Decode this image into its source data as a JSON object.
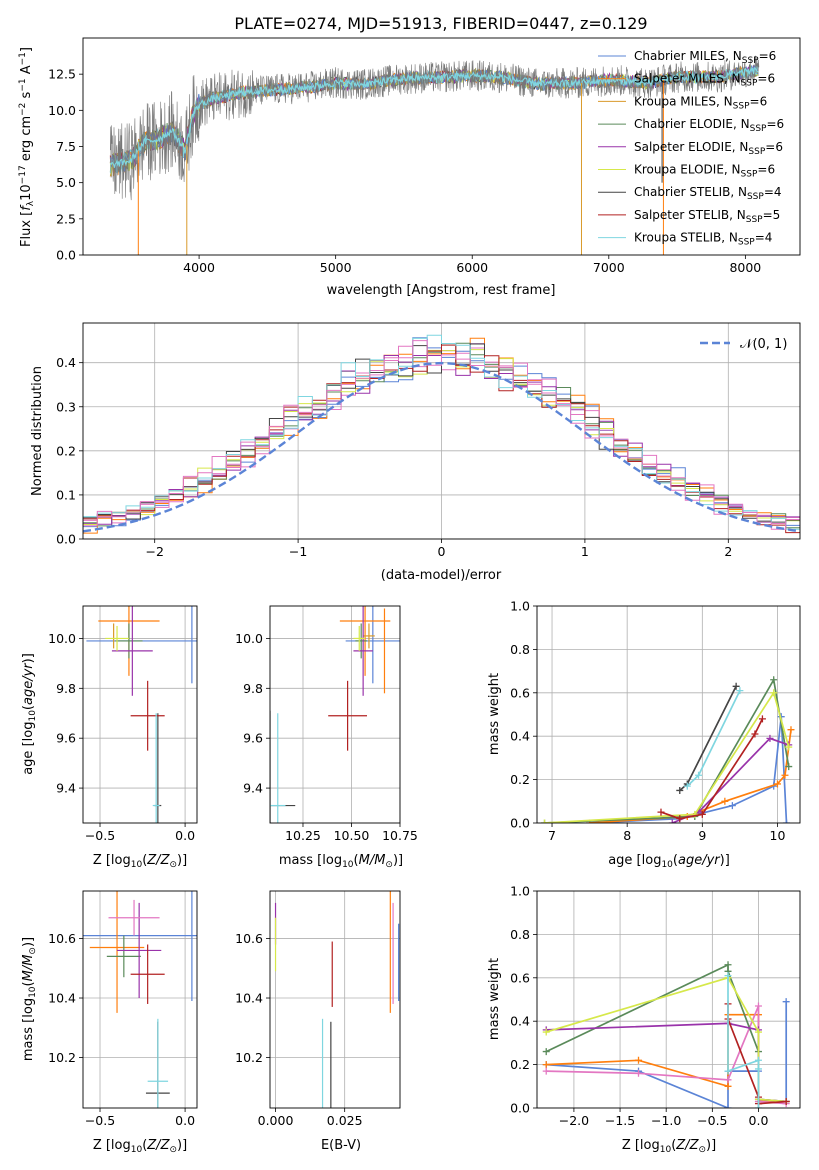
{
  "title": "PLATE=0274, MJD=51913, FIBERID=0447, z=0.129",
  "models": [
    {
      "name": "Chabrier MILES, N$_{SSP}$=6",
      "label_main": "Chabrier MILES, N",
      "label_sub": "SSP",
      "label_end": "=6",
      "color": "#5b84d6"
    },
    {
      "name": "Salpeter MILES, N$_{SSP}$=6",
      "label_main": "Salpeter MILES, N",
      "label_sub": "SSP",
      "label_end": "=6",
      "color": "#ff7f0e"
    },
    {
      "name": "Kroupa MILES, N$_{SSP}$=6",
      "label_main": "Kroupa MILES, N",
      "label_sub": "SSP",
      "label_end": "=6",
      "color": "#d99a2b"
    },
    {
      "name": "Chabrier ELODIE, N$_{SSP}$=6",
      "label_main": "Chabrier ELODIE, N",
      "label_sub": "SSP",
      "label_end": "=6",
      "color": "#5a8a5a"
    },
    {
      "name": "Salpeter ELODIE, N$_{SSP}$=6",
      "label_main": "Salpeter ELODIE, N",
      "label_sub": "SSP",
      "label_end": "=6",
      "color": "#9933aa"
    },
    {
      "name": "Kroupa ELODIE, N$_{SSP}$=6",
      "label_main": "Kroupa ELODIE, N",
      "label_sub": "SSP",
      "label_end": "=6",
      "color": "#d6e84a"
    },
    {
      "name": "Chabrier STELIB, N$_{SSP}$=4",
      "label_main": "Chabrier STELIB, N",
      "label_sub": "SSP",
      "label_end": "=4",
      "color": "#444444"
    },
    {
      "name": "Salpeter STELIB, N$_{SSP}$=5",
      "label_main": "Salpeter STELIB, N",
      "label_sub": "SSP",
      "label_end": "=5",
      "color": "#b22222"
    },
    {
      "name": "Kroupa STELIB, N$_{SSP}$=4",
      "label_main": "Kroupa STELIB, N",
      "label_sub": "SSP",
      "label_end": "=4",
      "color": "#7fd6e0"
    }
  ],
  "colors": {
    "grid": "#b0b0b0",
    "gauss": "#5b84d6",
    "data": "#777777",
    "pink": "#e377c2"
  },
  "chart_data": [
    {
      "id": "spectrum",
      "type": "line",
      "xlabel": "wavelength [Angstrom, rest frame]",
      "ylabel": "Flux [f$_\\lambda$10$^{-17}$ erg cm$^{-2}$ s$^{-1}$ A$^{-1}$]",
      "xlim": [
        3150,
        8400
      ],
      "ylim": [
        0,
        15
      ],
      "xticks": [
        4000,
        5000,
        6000,
        7000,
        8000
      ],
      "yticks": [
        0.0,
        2.5,
        5.0,
        7.5,
        10.0,
        12.5
      ],
      "xtick_labels": [
        "4000",
        "5000",
        "6000",
        "7000",
        "8000"
      ],
      "ytick_labels": [
        "0.0",
        "2.5",
        "5.0",
        "7.5",
        "10.0",
        "12.5"
      ],
      "continuum_x": [
        3350,
        3500,
        3600,
        3700,
        3800,
        3900,
        3950,
        4000,
        4100,
        4300,
        4500,
        4800,
        5000,
        5200,
        5500,
        5800,
        6000,
        6200,
        6500,
        6800,
        7000,
        7300,
        7500,
        7800,
        8100
      ],
      "continuum_y": [
        6.2,
        6.5,
        7.8,
        8.0,
        8.6,
        7.2,
        9.6,
        10.4,
        10.8,
        11.2,
        11.4,
        11.6,
        11.9,
        11.8,
        12.2,
        12.3,
        12.4,
        12.3,
        11.8,
        11.9,
        12.1,
        11.9,
        12.3,
        12.3,
        12.8
      ],
      "dips": [
        {
          "x": 3555,
          "y": 0.0,
          "series": 1
        },
        {
          "x": 3910,
          "y": 0.0,
          "series": 2
        },
        {
          "x": 6800,
          "y": 0.0,
          "series": 2
        },
        {
          "x": 7400,
          "y": 0.0,
          "series": 1
        },
        {
          "x": 7390,
          "y": 5.0,
          "series": 6
        }
      ],
      "legend": "top-right",
      "grid": false
    },
    {
      "id": "residuals",
      "type": "step",
      "xlabel": "(data-model)/error",
      "ylabel": "Normed distribution",
      "xlim": [
        -2.5,
        2.5
      ],
      "ylim": [
        0,
        0.49
      ],
      "xticks": [
        -2,
        -1,
        0,
        1,
        2
      ],
      "yticks": [
        0.0,
        0.1,
        0.2,
        0.3,
        0.4
      ],
      "xtick_labels": [
        "−2",
        "−1",
        "0",
        "1",
        "2"
      ],
      "ytick_labels": [
        "0.0",
        "0.1",
        "0.2",
        "0.3",
        "0.4"
      ],
      "bin_width": 0.1,
      "gauss_label": "$\\mathcal{N}(0,1)$",
      "gauss_label_text": "𝒩(0, 1)",
      "legend": "top-right",
      "grid": true
    },
    {
      "id": "age_vs_Z",
      "type": "errorbar",
      "xlabel": "Z [log$_{10}$(Z/Z$_\\odot$)]",
      "ylabel": "age  [log$_{10}$(age/yr)]",
      "xlim": [
        -0.6,
        0.07
      ],
      "ylim": [
        9.26,
        10.13
      ],
      "xticks": [
        -0.5,
        0.0
      ],
      "yticks": [
        9.4,
        9.6,
        9.8,
        10.0
      ],
      "xtick_labels": [
        "−0.5",
        "0.0"
      ],
      "ytick_labels": [
        "9.4",
        "9.6",
        "9.8",
        "10.0"
      ],
      "points": [
        {
          "s": 0,
          "x": -0.18,
          "xe": 0.4,
          "y": 9.99,
          "ye": 0.0
        },
        {
          "s": 0,
          "x": 0.04,
          "xe": 0.0,
          "y": 9.99,
          "ye": 0.17
        },
        {
          "s": 1,
          "x": -0.33,
          "xe": 0.18,
          "y": 10.07,
          "ye": 0.22
        },
        {
          "s": 2,
          "x": -0.42,
          "xe": 0.0,
          "y": 10.01,
          "ye": 0.05
        },
        {
          "s": 3,
          "x": -0.33,
          "xe": 0.08,
          "y": 9.99,
          "ye": 0.07
        },
        {
          "s": 4,
          "x": -0.31,
          "xe": 0.12,
          "y": 9.95,
          "ye": 0.18
        },
        {
          "s": 5,
          "x": -0.4,
          "xe": 0.07,
          "y": 10.0,
          "ye": 0.05
        },
        {
          "s": 6,
          "x": -0.16,
          "xe": 0.02,
          "y": 9.33,
          "ye": 0.37
        },
        {
          "s": 7,
          "x": -0.22,
          "xe": 0.1,
          "y": 9.69,
          "ye": 0.14
        },
        {
          "s": 8,
          "x": -0.17,
          "xe": 0.02,
          "y": 9.33,
          "ye": 0.37
        }
      ],
      "grid": true
    },
    {
      "id": "age_vs_mass",
      "type": "errorbar",
      "xlabel": "mass [log$_{10}$(M/M$_\\odot$)]",
      "ylabel": "",
      "xlim": [
        10.08,
        10.75
      ],
      "ylim": [
        9.26,
        10.13
      ],
      "xticks": [
        10.25,
        10.5,
        10.75
      ],
      "yticks": [
        9.4,
        9.6,
        9.8,
        10.0
      ],
      "xtick_labels": [
        "10.25",
        "10.50",
        "10.75"
      ],
      "ytick_labels": [
        "9.4",
        "9.6",
        "9.8",
        "10.0"
      ],
      "points": [
        {
          "s": 0,
          "x": 10.61,
          "xe": 0.14,
          "y": 9.99,
          "ye": 0.17
        },
        {
          "s": 1,
          "x": 10.57,
          "xe": 0.13,
          "y": 10.07,
          "ye": 0.22
        },
        {
          "s": 2,
          "x": 10.59,
          "xe": 0.03,
          "y": 10.01,
          "ye": 0.05
        },
        {
          "s": 3,
          "x": 10.55,
          "xe": 0.03,
          "y": 9.99,
          "ye": 0.07
        },
        {
          "s": 4,
          "x": 10.56,
          "xe": 0.05,
          "y": 9.95,
          "ye": 0.18
        },
        {
          "s": 5,
          "x": 10.54,
          "xe": 0.03,
          "y": 10.0,
          "ye": 0.05
        },
        {
          "s": 6,
          "x": 10.08,
          "xe": 0.13,
          "y": 9.33,
          "ye": 0.38
        },
        {
          "s": 7,
          "x": 10.48,
          "xe": 0.1,
          "y": 9.69,
          "ye": 0.14
        },
        {
          "s": 8,
          "x": 10.12,
          "xe": 0.04,
          "y": 9.33,
          "ye": 0.37
        },
        {
          "s": 1,
          "x": 10.67,
          "xe": 0.0,
          "y": 9.95,
          "ye": 0.17
        }
      ],
      "grid": true
    },
    {
      "id": "weight_vs_age",
      "type": "line",
      "xlabel": "age  [log$_{10}$(age/yr)]",
      "ylabel": "mass weight",
      "xlim": [
        6.8,
        10.3
      ],
      "ylim": [
        0,
        1.0
      ],
      "xticks": [
        7,
        8,
        9,
        10
      ],
      "yticks": [
        0.0,
        0.2,
        0.4,
        0.6,
        0.8,
        1.0
      ],
      "xtick_labels": [
        "7",
        "8",
        "9",
        "10"
      ],
      "ytick_labels": [
        "0.0",
        "0.2",
        "0.4",
        "0.6",
        "0.8",
        "1.0"
      ],
      "series": [
        {
          "s": 0,
          "x": [
            7.5,
            8.7,
            9.4,
            9.95,
            10.05,
            10.12
          ],
          "y": [
            0.0,
            0.02,
            0.08,
            0.17,
            0.49,
            0.0
          ]
        },
        {
          "s": 1,
          "x": [
            7.5,
            8.8,
            9.3,
            10.0,
            10.1,
            10.18
          ],
          "y": [
            0.0,
            0.03,
            0.1,
            0.18,
            0.22,
            0.43
          ]
        },
        {
          "s": 3,
          "x": [
            6.9,
            8.9,
            9.95,
            10.15
          ],
          "y": [
            0.0,
            0.03,
            0.66,
            0.26
          ]
        },
        {
          "s": 4,
          "x": [
            8.6,
            8.95,
            9.9,
            10.15
          ],
          "y": [
            0.0,
            0.05,
            0.39,
            0.36
          ]
        },
        {
          "s": 5,
          "x": [
            6.9,
            8.9,
            9.95,
            10.15
          ],
          "y": [
            0.0,
            0.04,
            0.6,
            0.35
          ]
        },
        {
          "s": 6,
          "x": [
            8.7,
            8.8,
            9.45
          ],
          "y": [
            0.15,
            0.18,
            0.63
          ]
        },
        {
          "s": 7,
          "x": [
            8.45,
            8.7,
            9.0,
            9.7,
            9.8
          ],
          "y": [
            0.05,
            0.02,
            0.04,
            0.41,
            0.48
          ]
        },
        {
          "s": 8,
          "x": [
            8.8,
            8.95,
            9.5
          ],
          "y": [
            0.17,
            0.22,
            0.61
          ]
        }
      ],
      "grid": true
    },
    {
      "id": "mass_vs_Z",
      "type": "errorbar",
      "xlabel": "Z [log$_{10}$(Z/Z$_\\odot$)]",
      "ylabel": "mass [log$_{10}$(M/M$_\\odot$)]",
      "xlim": [
        -0.6,
        0.07
      ],
      "ylim": [
        10.03,
        10.76
      ],
      "xticks": [
        -0.5,
        0.0
      ],
      "yticks": [
        10.2,
        10.4,
        10.6
      ],
      "xtick_labels": [
        "−0.5",
        "0.0"
      ],
      "ytick_labels": [
        "10.2",
        "10.4",
        "10.6"
      ],
      "points": [
        {
          "s": 0,
          "x": -0.25,
          "xe": 0.35,
          "y": 10.61,
          "ye": 0.0
        },
        {
          "s": 0,
          "x": 0.04,
          "xe": 0.0,
          "y": 10.61,
          "ye": 0.22
        },
        {
          "s": 1,
          "x": -0.4,
          "xe": 0.16,
          "y": 10.57,
          "ye": 0.22
        },
        {
          "s": 3,
          "x": -0.36,
          "xe": 0.1,
          "y": 10.54,
          "ye": 0.07
        },
        {
          "s": 4,
          "x": -0.27,
          "xe": 0.13,
          "y": 10.56,
          "ye": 0.16
        },
        {
          "s": 9,
          "x": -0.3,
          "xe": 0.15,
          "y": 10.67,
          "ye": 0.06
        },
        {
          "s": 6,
          "x": -0.16,
          "xe": 0.07,
          "y": 10.08,
          "ye": 0.24
        },
        {
          "s": 7,
          "x": -0.22,
          "xe": 0.1,
          "y": 10.48,
          "ye": 0.1
        },
        {
          "s": 8,
          "x": -0.16,
          "xe": 0.06,
          "y": 10.12,
          "ye": 0.21
        }
      ],
      "grid": true
    },
    {
      "id": "mass_vs_EBV",
      "type": "errorbar",
      "xlabel": "E(B-V)",
      "ylabel": "",
      "xlim": [
        -0.002,
        0.045
      ],
      "ylim": [
        10.03,
        10.76
      ],
      "xticks": [
        0.0,
        0.025
      ],
      "yticks": [
        10.2,
        10.4,
        10.6
      ],
      "xtick_labels": [
        "0.000",
        "0.025"
      ],
      "ytick_labels": [
        "10.2",
        "10.4",
        "10.6"
      ],
      "points": [
        {
          "s": 4,
          "x": 0.0,
          "y": 10.65,
          "ye": 0.07
        },
        {
          "s": 5,
          "x": 0.0,
          "y": 10.58,
          "ye": 0.09
        },
        {
          "s": 8,
          "x": 0.017,
          "y": 10.18,
          "ye": 0.15
        },
        {
          "s": 6,
          "x": 0.02,
          "y": 10.16,
          "ye": 0.16
        },
        {
          "s": 7,
          "x": 0.0205,
          "y": 10.48,
          "ye": 0.11
        },
        {
          "s": 1,
          "x": 0.0415,
          "y": 10.57,
          "ye": 0.22
        },
        {
          "s": 9,
          "x": 0.0425,
          "y": 10.55,
          "ye": 0.17
        },
        {
          "s": 0,
          "x": 0.0445,
          "y": 10.52,
          "ye": 0.13
        }
      ],
      "grid": true
    },
    {
      "id": "weight_vs_Z",
      "type": "line",
      "xlabel": "Z [log$_{10}$(Z/Z$_\\odot$)]",
      "ylabel": "mass weight",
      "xlim": [
        -2.4,
        0.45
      ],
      "ylim": [
        0,
        1.0
      ],
      "xticks": [
        -2.0,
        -1.5,
        -1.0,
        -0.5,
        0.0
      ],
      "yticks": [
        0.0,
        0.2,
        0.4,
        0.6,
        0.8,
        1.0
      ],
      "xtick_labels": [
        "−2.0",
        "−1.5",
        "−1.0",
        "−0.5",
        "0.0"
      ],
      "ytick_labels": [
        "0.0",
        "0.2",
        "0.4",
        "0.6",
        "0.8",
        "1.0"
      ],
      "series": [
        {
          "s": 0,
          "x": [
            -2.3,
            -1.3,
            -0.33,
            -0.33,
            0.0,
            0.0,
            0.3,
            0.3
          ],
          "y": [
            0.2,
            0.17,
            0.0,
            0.17,
            0.17,
            0.03,
            0.03,
            0.49
          ]
        },
        {
          "s": 1,
          "x": [
            -2.3,
            -1.3,
            -0.33,
            -0.33,
            0.0,
            0.0,
            0.3
          ],
          "y": [
            0.2,
            0.22,
            0.1,
            0.43,
            0.43,
            0.03,
            0.03
          ]
        },
        {
          "s": 9,
          "x": [
            -2.3,
            -1.3,
            -0.33,
            0.0,
            0.0,
            0.3
          ],
          "y": [
            0.17,
            0.16,
            0.13,
            0.47,
            0.03,
            0.02
          ]
        },
        {
          "s": 3,
          "x": [
            -2.3,
            -0.33,
            -0.33,
            0.0,
            0.0,
            0.3
          ],
          "y": [
            0.26,
            0.66,
            0.63,
            0.26,
            0.04,
            0.03
          ]
        },
        {
          "s": 4,
          "x": [
            -2.3,
            -0.33,
            -0.33,
            0.0,
            0.0,
            0.3
          ],
          "y": [
            0.36,
            0.39,
            0.39,
            0.36,
            0.04,
            0.03
          ]
        },
        {
          "s": 5,
          "x": [
            -2.3,
            -0.33,
            -0.33,
            0.0,
            0.0,
            0.3
          ],
          "y": [
            0.35,
            0.6,
            0.6,
            0.35,
            0.04,
            0.03
          ]
        },
        {
          "s": 7,
          "x": [
            -0.33,
            -0.33,
            0.0,
            0.0,
            0.3
          ],
          "y": [
            0.48,
            0.41,
            0.05,
            0.02,
            0.03
          ]
        },
        {
          "s": 8,
          "x": [
            -0.33,
            -0.33,
            0.0,
            0.0,
            0.0
          ],
          "y": [
            0.61,
            0.17,
            0.22,
            0.18,
            0.0
          ]
        }
      ],
      "grid": true
    }
  ]
}
